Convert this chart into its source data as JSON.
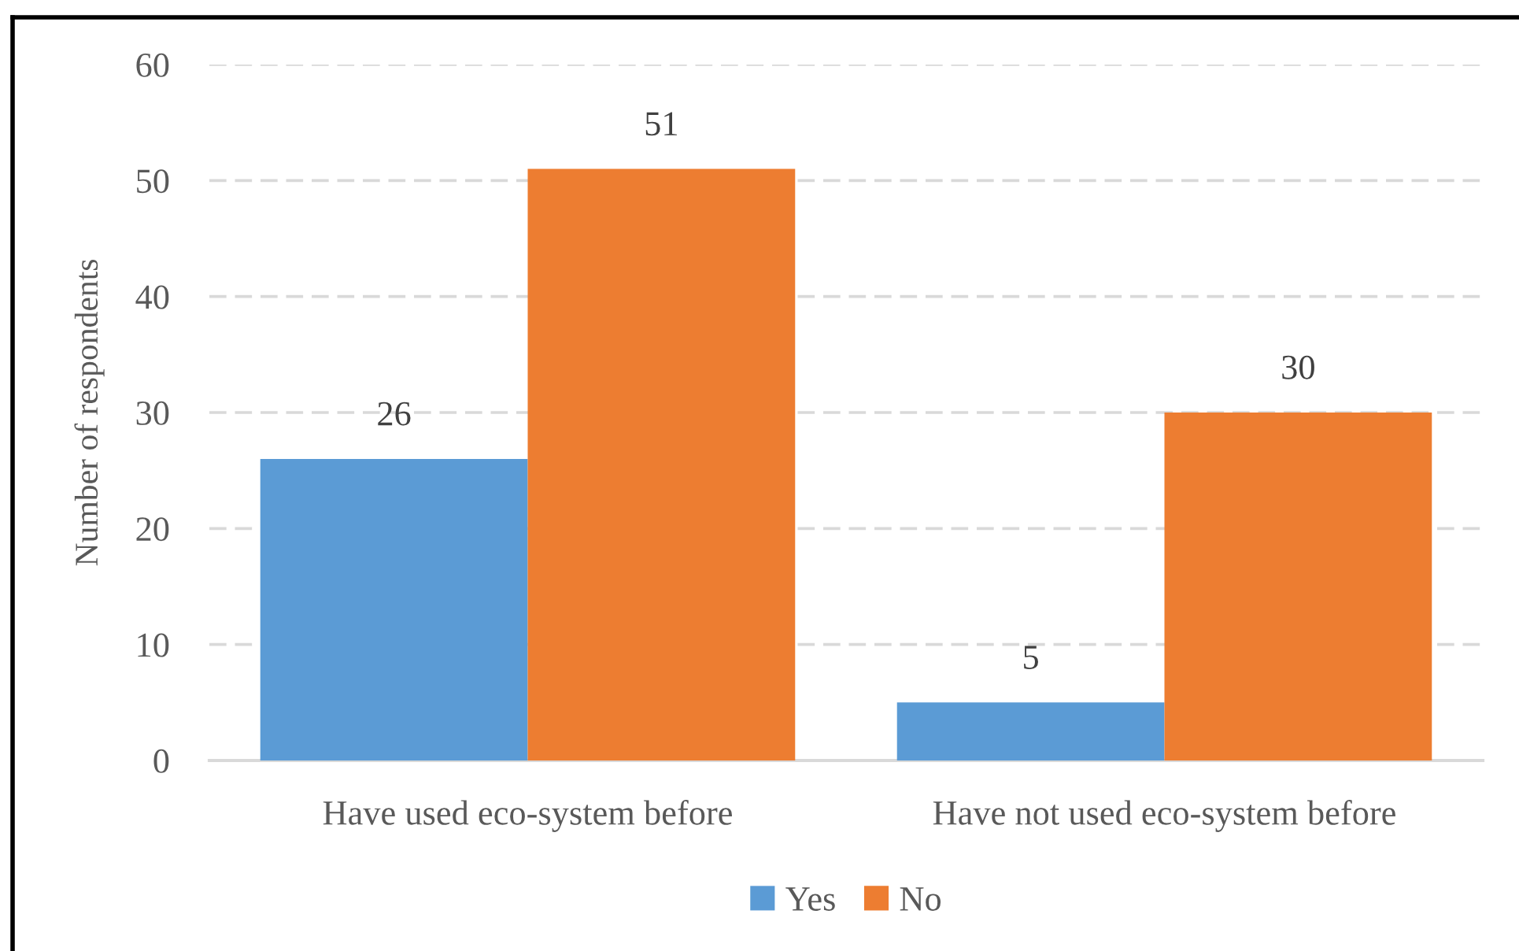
{
  "chart_data": {
    "type": "bar",
    "categories": [
      "Have used eco-system before",
      "Have not used eco-system before"
    ],
    "series": [
      {
        "name": "Yes",
        "color": "#5b9bd5",
        "values": [
          26,
          5
        ]
      },
      {
        "name": "No",
        "color": "#ed7d31",
        "values": [
          51,
          30
        ]
      }
    ],
    "ylabel": "Number of respondents",
    "ylim": [
      0,
      60
    ],
    "yticks": [
      0,
      10,
      20,
      30,
      40,
      50,
      60
    ],
    "grid": "y",
    "legend": "bottom",
    "data_labels": true
  }
}
